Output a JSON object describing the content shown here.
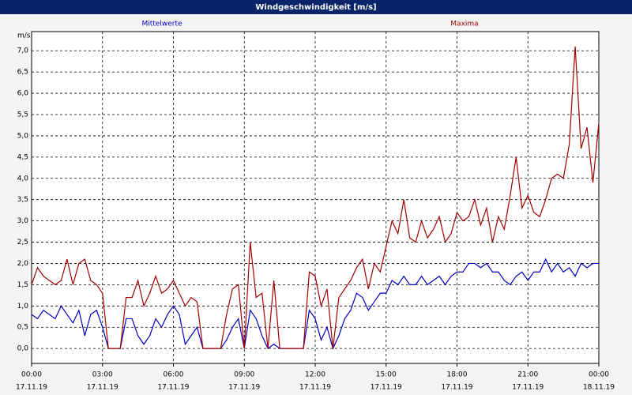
{
  "chart_data": {
    "type": "line",
    "title": "Windgeschwindigkeit [m/s]",
    "y_unit": "m/s",
    "x": [
      0,
      0.25,
      0.5,
      0.75,
      1,
      1.25,
      1.5,
      1.75,
      2,
      2.25,
      2.5,
      2.75,
      3,
      3.25,
      3.5,
      3.75,
      4,
      4.25,
      4.5,
      4.75,
      5,
      5.25,
      5.5,
      5.75,
      6,
      6.25,
      6.5,
      6.75,
      7,
      7.25,
      7.5,
      7.75,
      8,
      8.25,
      8.5,
      8.75,
      9,
      9.25,
      9.5,
      9.75,
      10,
      10.25,
      10.5,
      10.75,
      11,
      11.25,
      11.5,
      11.75,
      12,
      12.25,
      12.5,
      12.75,
      13,
      13.25,
      13.5,
      13.75,
      14,
      14.25,
      14.5,
      14.75,
      15,
      15.25,
      15.5,
      15.75,
      16,
      16.25,
      16.5,
      16.75,
      17,
      17.25,
      17.5,
      17.75,
      18,
      18.25,
      18.5,
      18.75,
      19,
      19.25,
      19.5,
      19.75,
      20,
      20.25,
      20.5,
      20.75,
      21,
      21.25,
      21.5,
      21.75,
      22,
      22.25,
      22.5,
      22.75,
      23,
      23.25,
      23.5,
      23.75,
      24
    ],
    "series": [
      {
        "name": "Mittelwerte",
        "color": "#0000c0",
        "values": [
          0.8,
          0.7,
          0.9,
          0.8,
          0.7,
          1.0,
          0.8,
          0.6,
          0.9,
          0.3,
          0.8,
          0.9,
          0.5,
          0.0,
          0,
          0,
          0.7,
          0.7,
          0.3,
          0.1,
          0.3,
          0.7,
          0.5,
          0.8,
          1.0,
          0.8,
          0.1,
          0.3,
          0.5,
          0,
          0,
          0,
          0,
          0.2,
          0.5,
          0.7,
          0,
          0.9,
          0.7,
          0.3,
          0,
          0.1,
          0,
          0,
          0,
          0,
          0,
          0.9,
          0.7,
          0.2,
          0.5,
          0,
          0.3,
          0.7,
          0.9,
          1.3,
          1.2,
          0.9,
          1.1,
          1.3,
          1.3,
          1.6,
          1.5,
          1.7,
          1.5,
          1.5,
          1.7,
          1.5,
          1.6,
          1.7,
          1.5,
          1.7,
          1.8,
          1.8,
          2.0,
          2.0,
          1.9,
          2.0,
          1.8,
          1.8,
          1.6,
          1.5,
          1.7,
          1.8,
          1.6,
          1.8,
          1.8,
          2.1,
          1.8,
          2.0,
          1.8,
          1.9,
          1.7,
          2.0,
          1.9,
          2.0,
          2.0
        ]
      },
      {
        "name": "Maxima",
        "color": "#a00000",
        "values": [
          1.5,
          1.9,
          1.7,
          1.6,
          1.5,
          1.6,
          2.1,
          1.5,
          2.0,
          2.1,
          1.6,
          1.5,
          1.3,
          0.0,
          0,
          0,
          1.2,
          1.2,
          1.6,
          1.0,
          1.3,
          1.7,
          1.3,
          1.4,
          1.6,
          1.3,
          1.0,
          1.2,
          1.1,
          0,
          0,
          0,
          0,
          0.8,
          1.4,
          1.5,
          0,
          2.5,
          1.2,
          1.3,
          0,
          1.6,
          0,
          0,
          0,
          0,
          0,
          1.8,
          1.7,
          1.0,
          1.4,
          0,
          1.2,
          1.4,
          1.6,
          1.9,
          2.1,
          1.4,
          2.0,
          1.8,
          2.4,
          3.0,
          2.7,
          3.5,
          2.6,
          2.5,
          3.0,
          2.6,
          2.8,
          3.1,
          2.5,
          2.7,
          3.2,
          3.0,
          3.1,
          3.5,
          2.9,
          3.3,
          2.5,
          3.1,
          2.8,
          3.6,
          4.5,
          3.3,
          3.6,
          3.2,
          3.1,
          3.5,
          4.0,
          4.1,
          4.0,
          4.8,
          7.1,
          4.7,
          5.2,
          3.9,
          5.3
        ]
      }
    ],
    "xlim": [
      0,
      24
    ],
    "xticks": [
      {
        "value": 0,
        "label": "00:00",
        "date": "17.11.19"
      },
      {
        "value": 3,
        "label": "03:00",
        "date": "17.11.19"
      },
      {
        "value": 6,
        "label": "06:00",
        "date": "17.11.19"
      },
      {
        "value": 9,
        "label": "09:00",
        "date": "17.11.19"
      },
      {
        "value": 12,
        "label": "12:00",
        "date": "17.11.19"
      },
      {
        "value": 15,
        "label": "15:00",
        "date": "17.11.19"
      },
      {
        "value": 18,
        "label": "18:00",
        "date": "17.11.19"
      },
      {
        "value": 21,
        "label": "21:00",
        "date": "17.11.19"
      },
      {
        "value": 24,
        "label": "00:00",
        "date": "18.11.19"
      }
    ],
    "ylim": [
      -0.35,
      7.45
    ],
    "yticks": [
      {
        "value": 0,
        "label": "0,0"
      },
      {
        "value": 0.5,
        "label": "0,5"
      },
      {
        "value": 1,
        "label": "1,0"
      },
      {
        "value": 1.5,
        "label": "1,5"
      },
      {
        "value": 2,
        "label": "2,0"
      },
      {
        "value": 2.5,
        "label": "2,5"
      },
      {
        "value": 3,
        "label": "3,0"
      },
      {
        "value": 3.5,
        "label": "3,5"
      },
      {
        "value": 4,
        "label": "4,0"
      },
      {
        "value": 4.5,
        "label": "4,5"
      },
      {
        "value": 5,
        "label": "5,0"
      },
      {
        "value": 5.5,
        "label": "5,5"
      },
      {
        "value": 6,
        "label": "6,0"
      },
      {
        "value": 6.5,
        "label": "6,5"
      },
      {
        "value": 7,
        "label": "7,0"
      }
    ],
    "grid": true
  }
}
